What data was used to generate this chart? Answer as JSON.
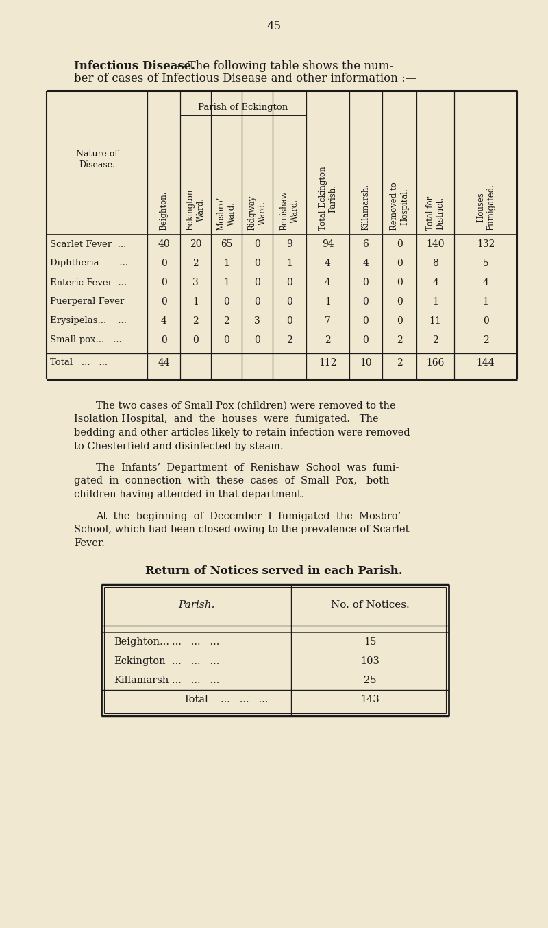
{
  "bg_color": "#f0e8d0",
  "text_color": "#1a1a1a",
  "page_number": "45",
  "title_bold": "Infectious Disease.",
  "title_rest": "—The following table shows the num-",
  "title_line2": "ber of cases of Infectious Disease and other information :—",
  "col_headers": [
    "Nature of\nDisease.",
    "Beighton.",
    "Eckington\nWard.",
    "Mosbro’\nWard.",
    "Ridgway\nWard.",
    "Renishaw\nWard.",
    "Total Eckington\nParish.",
    "Killamarsh.",
    "Removed to\nHospital.",
    "Total for\nDistrict.",
    "Houses\nFumigated."
  ],
  "diseases": [
    [
      "Scarlet Fever  ...",
      "40",
      "20",
      "65",
      "0",
      "9",
      "94",
      "6",
      "0",
      "140",
      "132"
    ],
    [
      "Diphtheria       ...",
      "0",
      "2",
      "1",
      "0",
      "1",
      "4",
      "4",
      "0",
      "8",
      "5"
    ],
    [
      "Enteric Fever  ...",
      "0",
      "3",
      "1",
      "0",
      "0",
      "4",
      "0",
      "0",
      "4",
      "4"
    ],
    [
      "Puerperal Fever",
      "0",
      "1",
      "0",
      "0",
      "0",
      "1",
      "0",
      "0",
      "1",
      "1"
    ],
    [
      "Erysipelas...    ...",
      "4",
      "2",
      "2",
      "3",
      "0",
      "7",
      "0",
      "0",
      "11",
      "0"
    ],
    [
      "Small-pox...   ...",
      "0",
      "0",
      "0",
      "0",
      "2",
      "2",
      "0",
      "2",
      "2",
      "2"
    ]
  ],
  "total_row": [
    "Total   ...   ...",
    "44",
    "",
    "",
    "",
    "",
    "112",
    "10",
    "2",
    "166",
    "144"
  ],
  "para1_indent": "        The two cases of Small Pox (children) were removed to the",
  "para1_lines": [
    "Isolation Hospital,  and  the  houses  were  fumigated.   The",
    "bedding and other articles likely to retain infection were removed",
    "to Chesterfield and disinfected by steam."
  ],
  "para2_indent": "        The  Infants’  Department  of  Renishaw  School  was  fumi-",
  "para2_lines": [
    "gated  in  connection  with  these  cases  of  Small  Pox,   both",
    "children having attended in that department."
  ],
  "para3_indent": "        At  the  beginning  of  December  I  fumigated  the  Mosbro’",
  "para3_lines": [
    "School, which had been closed owing to the prevalence of Scarlet",
    "Fever."
  ],
  "notices_title": "Return of Notices served in each Parish.",
  "notices_col1_header": "Parish.",
  "notices_col2_header": "No. of Notices.",
  "notices_rows": [
    [
      "Beighton...",
      "15"
    ],
    [
      "Eckington",
      "103"
    ],
    [
      "Killamarsh",
      "25"
    ]
  ],
  "notices_total": "143"
}
